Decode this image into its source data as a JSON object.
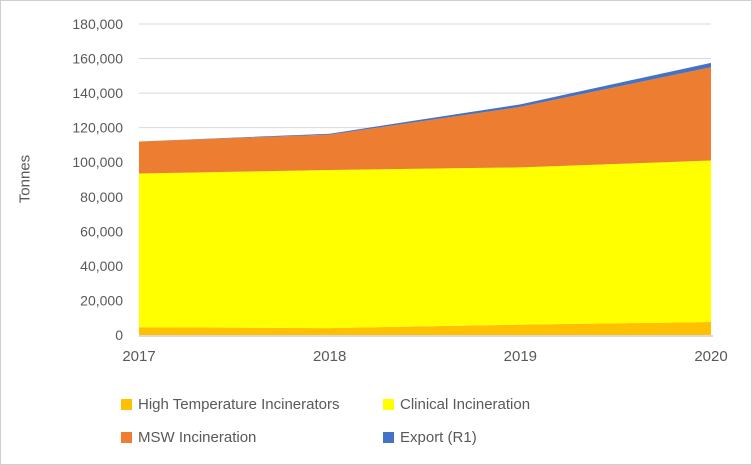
{
  "chart_data": {
    "type": "area",
    "stacked": true,
    "title": "",
    "xlabel": "",
    "ylabel": "Tonnes",
    "x": [
      2017,
      2018,
      2019,
      2020
    ],
    "x_tick_labels": [
      "2017",
      "2018",
      "2019",
      "2020"
    ],
    "y_tick_labels": [
      "0",
      "20,000",
      "40,000",
      "60,000",
      "80,000",
      "100,000",
      "120,000",
      "140,000",
      "160,000",
      "180,000"
    ],
    "y_tick_step": 20000,
    "ylim": [
      0,
      180000
    ],
    "grid": true,
    "legend_position": "bottom",
    "series": [
      {
        "name": "High Temperature Incinerators",
        "color": "#FFC000",
        "values": [
          4500,
          4000,
          6000,
          7500
        ]
      },
      {
        "name": "Clinical Incineration",
        "color": "#FFFF00",
        "values": [
          89000,
          91500,
          91000,
          93500
        ]
      },
      {
        "name": "MSW Incineration",
        "color": "#ED7D31",
        "values": [
          18500,
          20500,
          35000,
          54000
        ]
      },
      {
        "name": "Export (R1)",
        "color": "#4472C4",
        "values": [
          0,
          500,
          1500,
          2500
        ]
      }
    ],
    "totals": [
      112000,
      116500,
      133500,
      157500
    ]
  },
  "colors": {
    "text": "#595959",
    "gridline": "#D9D9D9",
    "axis_line": "#D9D9D9",
    "frame_border": "#CFCFCF"
  }
}
